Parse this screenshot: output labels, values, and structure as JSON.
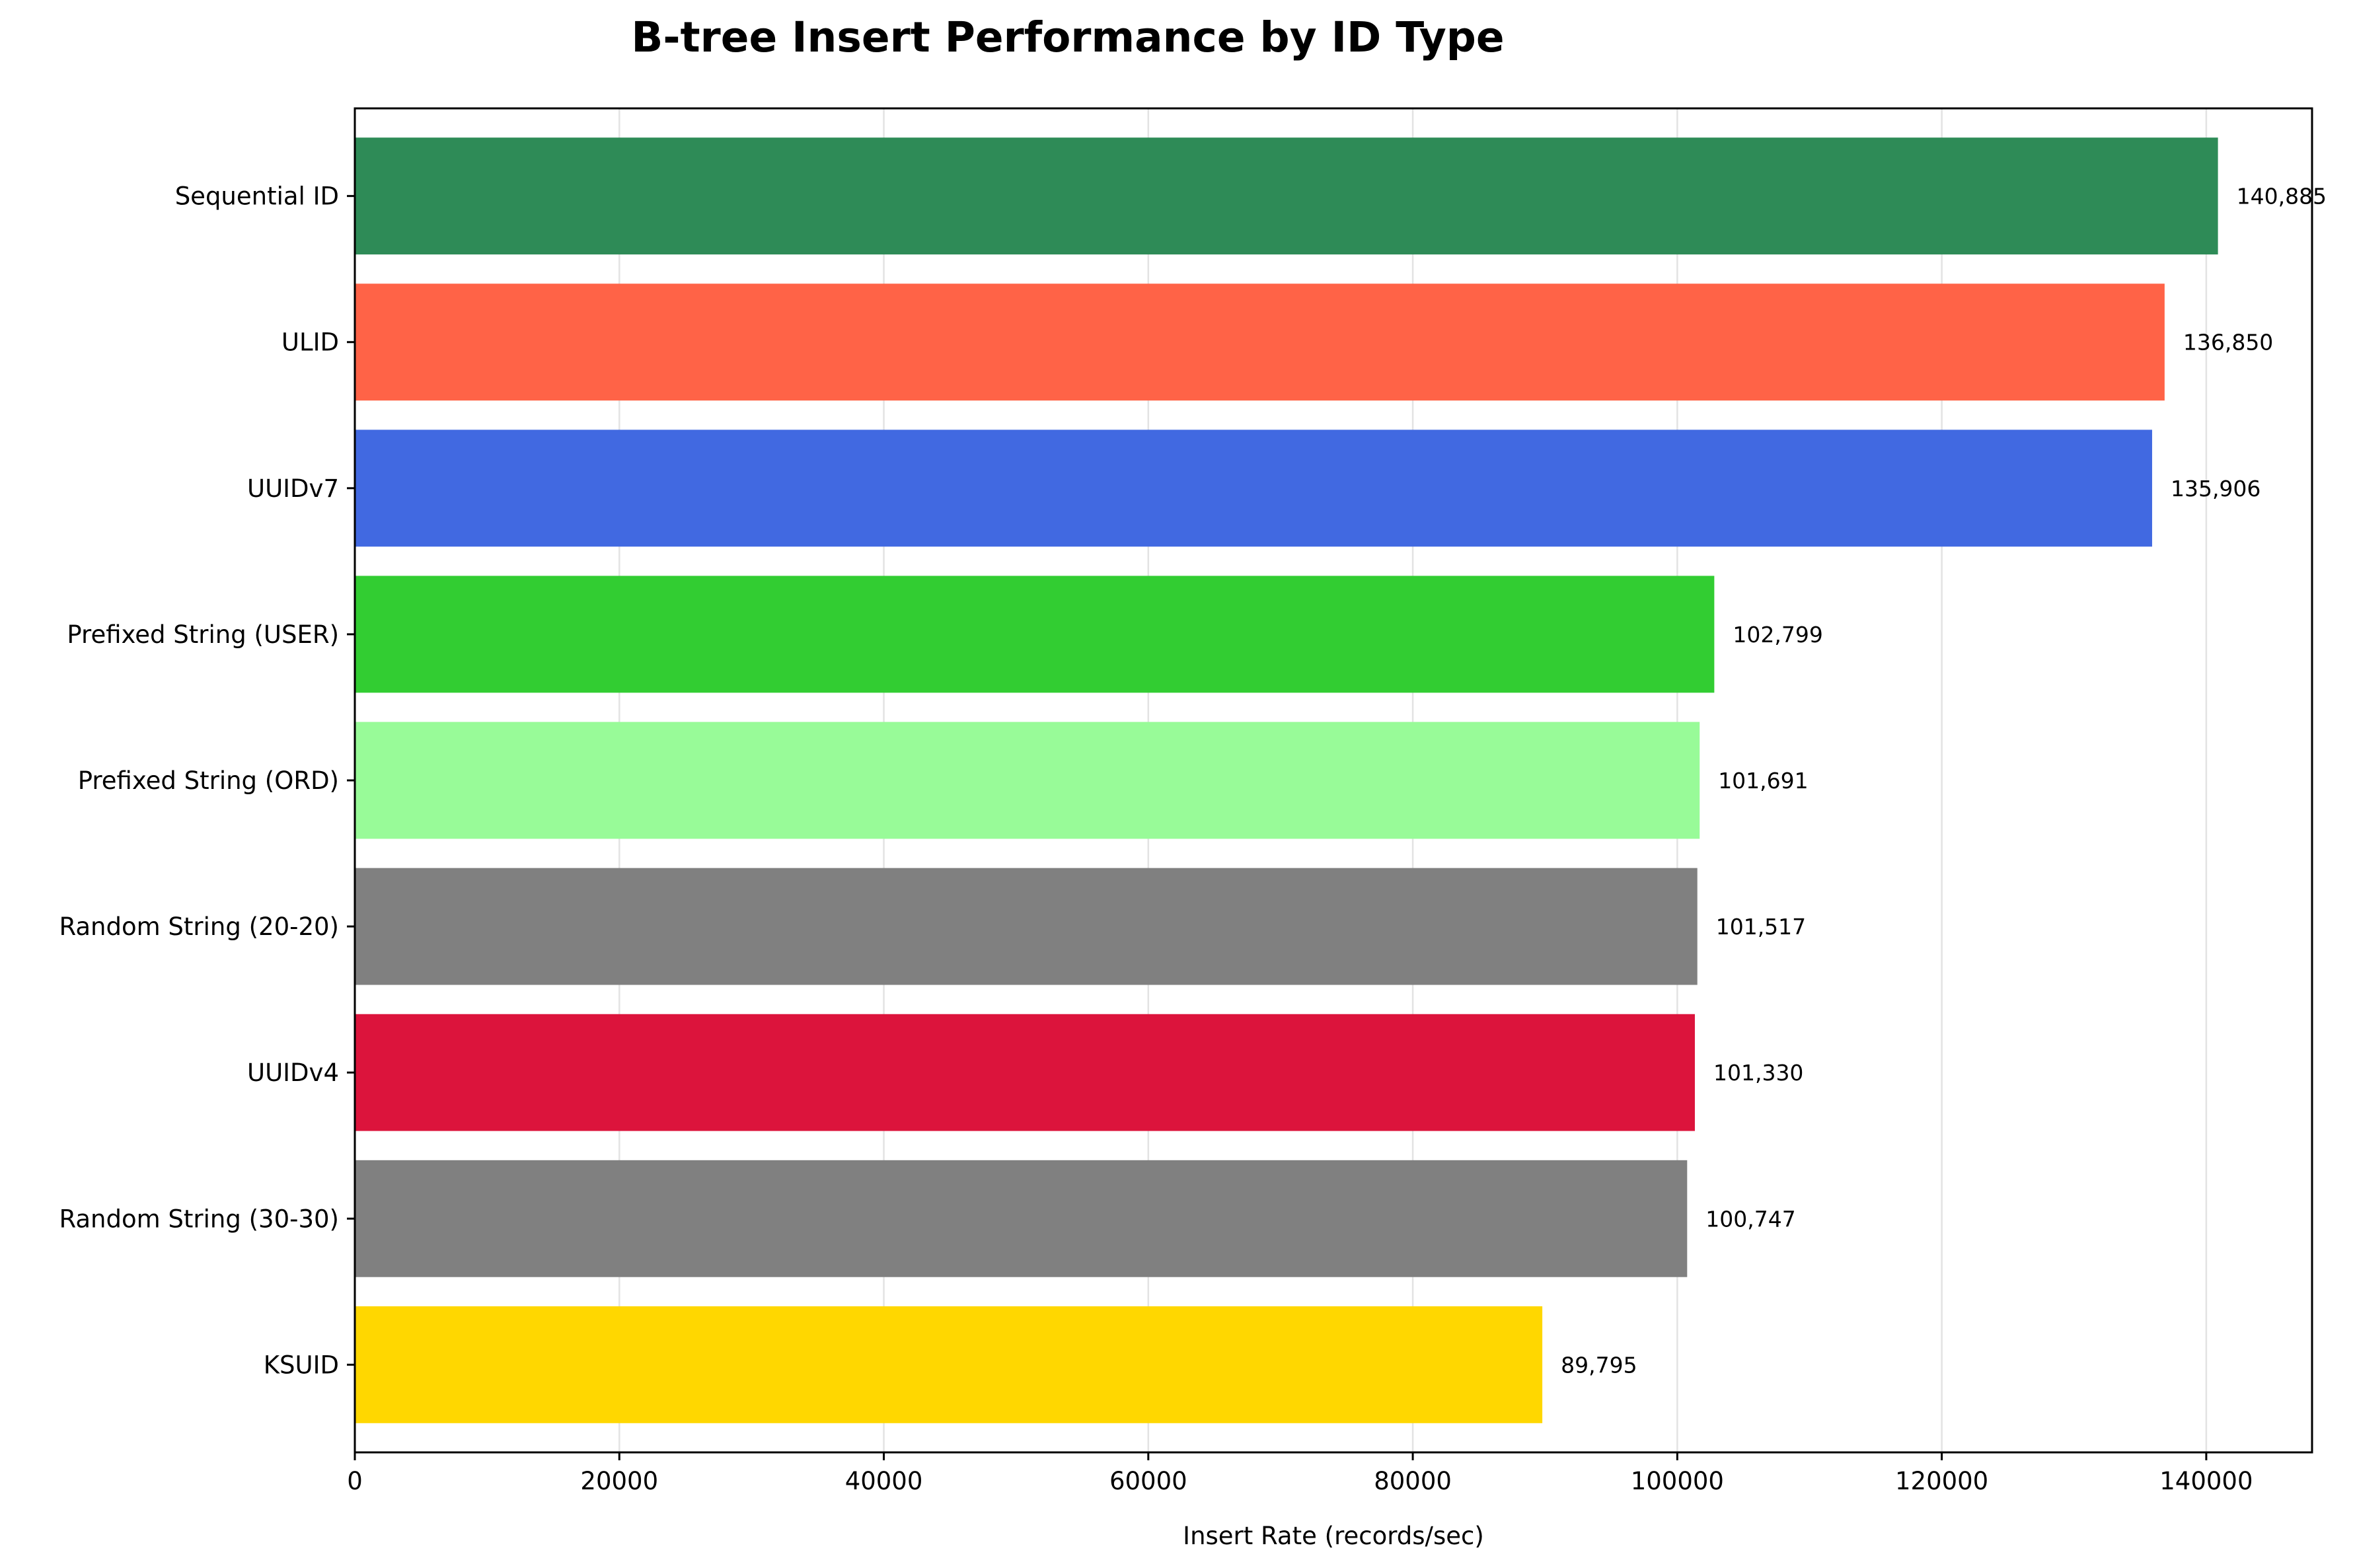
{
  "chart_data": {
    "type": "bar",
    "orientation": "horizontal",
    "title": "B-tree Insert Performance by ID Type",
    "xlabel": "Insert Rate (records/sec)",
    "ylabel": "",
    "xlim": [
      0,
      148000
    ],
    "xticks": [
      0,
      20000,
      40000,
      60000,
      80000,
      100000,
      120000,
      140000
    ],
    "xtick_labels": [
      "0",
      "20000",
      "40000",
      "60000",
      "80000",
      "100000",
      "120000",
      "140000"
    ],
    "grid": "x",
    "categories": [
      "Sequential ID",
      "ULID",
      "UUIDv7",
      "Prefixed String (USER)",
      "Prefixed String (ORD)",
      "Random String (20-20)",
      "UUIDv4",
      "Random String (30-30)",
      "KSUID"
    ],
    "values": [
      140885,
      136850,
      135906,
      102799,
      101691,
      101517,
      101330,
      100747,
      89795
    ],
    "value_labels": [
      "140,885",
      "136,850",
      "135,906",
      "102,799",
      "101,691",
      "101,517",
      "101,330",
      "100,747",
      "89,795"
    ],
    "colors": [
      "#2e8b57",
      "#ff6347",
      "#4169e1",
      "#32cd32",
      "#98fb98",
      "#808080",
      "#dc143c",
      "#808080",
      "#ffd700"
    ]
  }
}
